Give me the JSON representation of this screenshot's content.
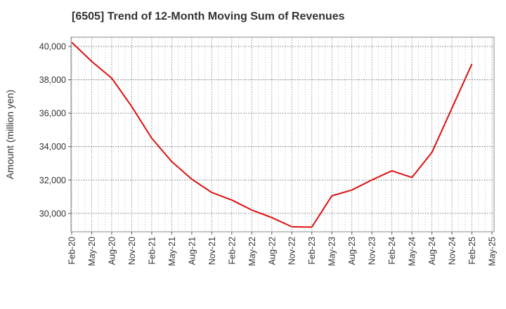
{
  "chart_data": {
    "type": "line",
    "title": "[6505]  Trend of 12-Month Moving Sum of Revenues",
    "xlabel": "",
    "ylabel": "Amount (million yen)",
    "x_tick_labels": [
      "Feb-20",
      "May-20",
      "Aug-20",
      "Nov-20",
      "Feb-21",
      "May-21",
      "Aug-21",
      "Nov-21",
      "Feb-22",
      "May-22",
      "Aug-22",
      "Nov-22",
      "Feb-23",
      "May-23",
      "Aug-23",
      "Nov-23",
      "Feb-24",
      "May-24",
      "Aug-24",
      "Nov-24",
      "Feb-25",
      "May-25"
    ],
    "y_ticks": [
      30000,
      32000,
      34000,
      36000,
      38000,
      40000
    ],
    "y_tick_labels": [
      "30,000",
      "32,000",
      "34,000",
      "36,000",
      "38,000",
      "40,000"
    ],
    "ylim": [
      28900,
      40550
    ],
    "grid": true,
    "line_color": "#dd1111",
    "series": [
      {
        "x": [
          "Feb-20",
          "May-20",
          "Aug-20",
          "Nov-20",
          "Feb-21",
          "May-21",
          "Aug-21",
          "Nov-21",
          "Feb-22",
          "May-22",
          "Aug-22",
          "Nov-22",
          "Feb-23",
          "May-23",
          "Aug-23",
          "Nov-23",
          "Feb-24",
          "May-24",
          "Aug-24",
          "Nov-24",
          "Feb-25"
        ],
        "values": [
          40250,
          39100,
          38100,
          36400,
          34500,
          33100,
          32050,
          31250,
          30800,
          30200,
          29750,
          29200,
          29180,
          31050,
          31400,
          32000,
          32550,
          32150,
          33650,
          36300,
          38950
        ]
      }
    ]
  }
}
